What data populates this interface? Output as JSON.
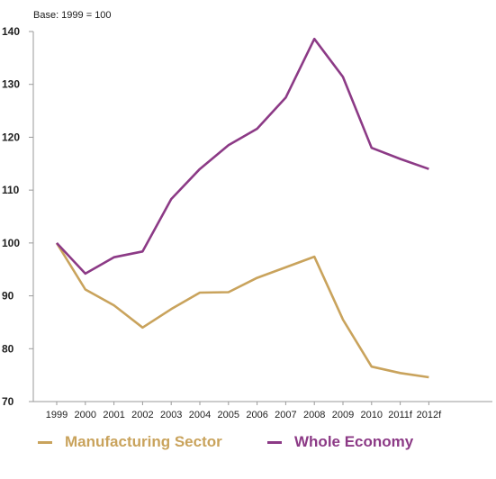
{
  "chart_data": {
    "type": "line",
    "subtitle": "Base: 1999 = 100",
    "categories": [
      "1999",
      "2000",
      "2001",
      "2002",
      "2003",
      "2004",
      "2005",
      "2006",
      "2007",
      "2008",
      "2009",
      "2010",
      "2011f",
      "2012f"
    ],
    "series": [
      {
        "name": "Manufacturing Sector",
        "color": "#c9a35c",
        "values": [
          100,
          91.2,
          88.2,
          84.0,
          87.5,
          90.6,
          90.7,
          93.4,
          95.4,
          97.4,
          85.5,
          76.6,
          75.4,
          74.6
        ]
      },
      {
        "name": "Whole Economy",
        "color": "#8c3a86",
        "values": [
          100,
          94.2,
          97.3,
          98.4,
          108.3,
          114.0,
          118.5,
          121.6,
          127.5,
          138.6,
          131.4,
          118.0,
          115.9,
          114.0
        ]
      }
    ],
    "yticks": [
      70,
      80,
      90,
      100,
      110,
      120,
      130,
      140
    ],
    "ylim": [
      70,
      140
    ],
    "grid": false,
    "legend_position": "bottom"
  }
}
